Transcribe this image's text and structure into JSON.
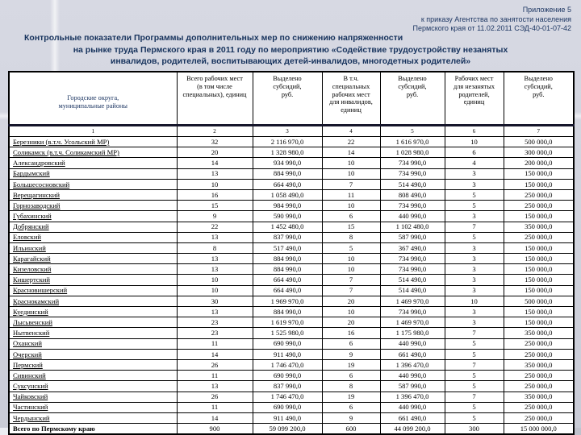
{
  "page": {
    "appendix_line1": "Приложение 5",
    "appendix_line2": "к приказу Агентства по занятости населения",
    "appendix_line3": "Пермского края от 11.02.2011 СЭД-40-01-07-42",
    "title_line1": "Контрольные показатели Программы дополнительных мер по снижению напряженности",
    "title_line2": "на рынке труда Пермского края в 2011 году по мероприятию «Содействие трудоустройству  незанятых",
    "title_line3": "инвалидов, родителей, воспитывающих детей-инвалидов, многодетных родителей»"
  },
  "table": {
    "columns": [
      "Городские округа,\nмуниципальные районы",
      "Всего  рабочих мест\n(в том числе\nспециальных), единиц",
      "Выделено\nсубсидий,\nруб.",
      "В т.ч.\nспециальных\nрабочих мест\nдля инвалидов,\nединиц",
      "Выделено\nсубсидий,\nруб.",
      "Рабочих мест\nдля незанятых\nродителей,\nединиц",
      "Выделено\nсубсидий,\nруб."
    ],
    "col_numbers": [
      "1",
      "2",
      "3",
      "4",
      "5",
      "6",
      "7"
    ],
    "rows": [
      [
        "Березники (в.т.ч. Усольский МР)",
        "32",
        "2 116 970,0",
        "22",
        "1 616 970,0",
        "10",
        "500 000,0"
      ],
      [
        "Соликамск (в.т.ч. Соликамский МР)",
        "20",
        "1 328 980,0",
        "14",
        "1 028 980,0",
        "6",
        "300 000,0"
      ],
      [
        "Александровский",
        "14",
        "934 990,0",
        "10",
        "734 990,0",
        "4",
        "200 000,0"
      ],
      [
        "Бардымский",
        "13",
        "884 990,0",
        "10",
        "734 990,0",
        "3",
        "150 000,0"
      ],
      [
        "Большесосновский",
        "10",
        "664 490,0",
        "7",
        "514 490,0",
        "3",
        "150 000,0"
      ],
      [
        "Верещагинский",
        "16",
        "1 058 490,0",
        "11",
        "808 490,0",
        "5",
        "250 000,0"
      ],
      [
        "Горнозаводский",
        "15",
        "984 990,0",
        "10",
        "734 990,0",
        "5",
        "250 000,0"
      ],
      [
        "Губахинский",
        "9",
        "590 990,0",
        "6",
        "440 990,0",
        "3",
        "150 000,0"
      ],
      [
        "Добрянский",
        "22",
        "1 452 480,0",
        "15",
        "1 102 480,0",
        "7",
        "350 000,0"
      ],
      [
        "Еловский",
        "13",
        "837 990,0",
        "8",
        "587 990,0",
        "5",
        "250 000,0"
      ],
      [
        "Ильинский",
        "8",
        "517 490,0",
        "5",
        "367 490,0",
        "3",
        "150 000,0"
      ],
      [
        "Карагайский",
        "13",
        "884 990,0",
        "10",
        "734 990,0",
        "3",
        "150 000,0"
      ],
      [
        "Кизеловский",
        "13",
        "884 990,0",
        "10",
        "734 990,0",
        "3",
        "150 000,0"
      ],
      [
        "Кишертский",
        "10",
        "664 490,0",
        "7",
        "514 490,0",
        "3",
        "150 000,0"
      ],
      [
        "Красновишерский",
        "10",
        "664 490,0",
        "7",
        "514 490,0",
        "3",
        "150 000,0"
      ],
      [
        "Краснокамский",
        "30",
        "1 969 970,0",
        "20",
        "1 469 970,0",
        "10",
        "500 000,0"
      ],
      [
        "Куединский",
        "13",
        "884 990,0",
        "10",
        "734 990,0",
        "3",
        "150 000,0"
      ],
      [
        "Лысьвенский",
        "23",
        "1 619 970,0",
        "20",
        "1 469 970,0",
        "3",
        "150 000,0"
      ],
      [
        "Нытвенский",
        "23",
        "1 525 980,0",
        "16",
        "1 175 980,0",
        "7",
        "350 000,0"
      ],
      [
        "Оханский",
        "11",
        "690 990,0",
        "6",
        "440 990,0",
        "5",
        "250 000,0"
      ],
      [
        "Очерский",
        "14",
        "911 490,0",
        "9",
        "661 490,0",
        "5",
        "250 000,0"
      ],
      [
        "Пермский",
        "26",
        "1 746 470,0",
        "19",
        "1 396 470,0",
        "7",
        "350 000,0"
      ],
      [
        "Сивинский",
        "11",
        "690 990,0",
        "6",
        "440 990,0",
        "5",
        "250 000,0"
      ],
      [
        "Суксунский",
        "13",
        "837 990,0",
        "8",
        "587 990,0",
        "5",
        "250 000,0"
      ],
      [
        "Чайковский",
        "26",
        "1 746 470,0",
        "19",
        "1 396 470,0",
        "7",
        "350 000,0"
      ],
      [
        "Частинский",
        "11",
        "690 990,0",
        "6",
        "440 990,0",
        "5",
        "250 000,0"
      ],
      [
        "Чердынский",
        "14",
        "911 490,0",
        "9",
        "661 490,0",
        "5",
        "250 000,0"
      ]
    ],
    "total_row": [
      "Всего по Пермскому краю",
      "900",
      "59 099 200,0",
      "600",
      "44 099 200,0",
      "300",
      "15 000 000,0"
    ]
  },
  "colors": {
    "accent_navy": "#1f3864",
    "background": "#d1d3dd",
    "cell_background": "#ffffff",
    "border": "#000000"
  }
}
